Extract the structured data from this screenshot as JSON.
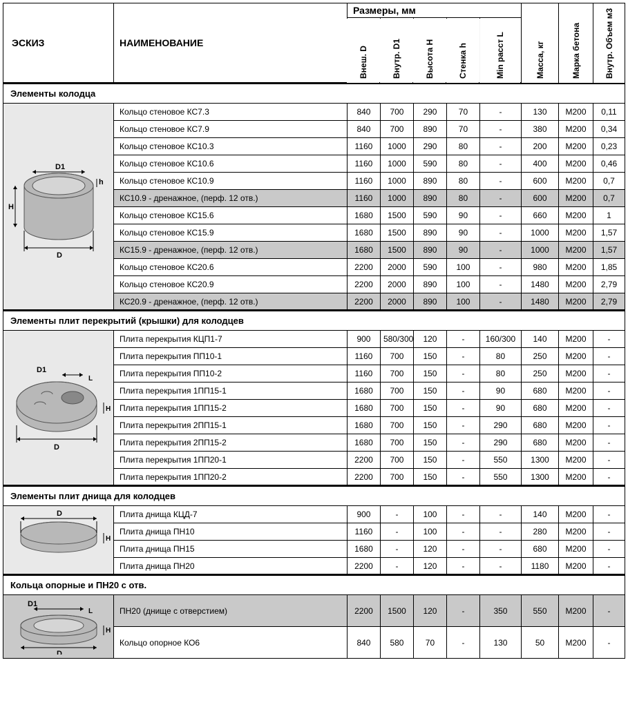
{
  "headers": {
    "sketch": "ЭСКИЗ",
    "name": "НАИМЕНОВАНИЕ",
    "dims_group": "Размеры, мм",
    "outerD": "Внеш. D",
    "innerD1": "Внутр. D1",
    "heightH": "Высота H",
    "wallh": "Стенка h",
    "minL": "Min расст L",
    "mass": "Масса, кг",
    "grade": "Марка бетона",
    "volume": "Внутр. Объем м3"
  },
  "sections": [
    {
      "title": "Элементы колодца",
      "sketch": "ring",
      "rows": [
        {
          "hl": false,
          "name": "Кольцо стеновое КС7.3",
          "D": "840",
          "D1": "700",
          "H": "290",
          "h": "70",
          "L": "-",
          "mass": "130",
          "grade": "M200",
          "vol": "0,11"
        },
        {
          "hl": false,
          "name": "Кольцо стеновое КС7.9",
          "D": "840",
          "D1": "700",
          "H": "890",
          "h": "70",
          "L": "-",
          "mass": "380",
          "grade": "M200",
          "vol": "0,34"
        },
        {
          "hl": false,
          "name": "Кольцо стеновое КС10.3",
          "D": "1160",
          "D1": "1000",
          "H": "290",
          "h": "80",
          "L": "-",
          "mass": "200",
          "grade": "M200",
          "vol": "0,23"
        },
        {
          "hl": false,
          "name": "Кольцо стеновое КС10.6",
          "D": "1160",
          "D1": "1000",
          "H": "590",
          "h": "80",
          "L": "-",
          "mass": "400",
          "grade": "M200",
          "vol": "0,46"
        },
        {
          "hl": false,
          "name": "Кольцо стеновое КС10.9",
          "D": "1160",
          "D1": "1000",
          "H": "890",
          "h": "80",
          "L": "-",
          "mass": "600",
          "grade": "M200",
          "vol": "0,7"
        },
        {
          "hl": true,
          "name": "КС10.9 - дренажное, (перф. 12 отв.)",
          "D": "1160",
          "D1": "1000",
          "H": "890",
          "h": "80",
          "L": "-",
          "mass": "600",
          "grade": "M200",
          "vol": "0,7"
        },
        {
          "hl": false,
          "name": "Кольцо стеновое КС15.6",
          "D": "1680",
          "D1": "1500",
          "H": "590",
          "h": "90",
          "L": "-",
          "mass": "660",
          "grade": "M200",
          "vol": "1"
        },
        {
          "hl": false,
          "name": "Кольцо стеновое КС15.9",
          "D": "1680",
          "D1": "1500",
          "H": "890",
          "h": "90",
          "L": "-",
          "mass": "1000",
          "grade": "M200",
          "vol": "1,57"
        },
        {
          "hl": true,
          "name": "КС15.9 - дренажное, (перф. 12 отв.)",
          "D": "1680",
          "D1": "1500",
          "H": "890",
          "h": "90",
          "L": "-",
          "mass": "1000",
          "grade": "M200",
          "vol": "1,57"
        },
        {
          "hl": false,
          "name": "Кольцо стеновое КС20.6",
          "D": "2200",
          "D1": "2000",
          "H": "590",
          "h": "100",
          "L": "-",
          "mass": "980",
          "grade": "M200",
          "vol": "1,85"
        },
        {
          "hl": false,
          "name": "Кольцо стеновое КС20.9",
          "D": "2200",
          "D1": "2000",
          "H": "890",
          "h": "100",
          "L": "-",
          "mass": "1480",
          "grade": "M200",
          "vol": "2,79"
        },
        {
          "hl": true,
          "name": "КС20.9 - дренажное, (перф. 12 отв.)",
          "D": "2200",
          "D1": "2000",
          "H": "890",
          "h": "100",
          "L": "-",
          "mass": "1480",
          "grade": "M200",
          "vol": "2,79"
        }
      ]
    },
    {
      "title": "Элементы плит перекрытий (крышки) для колодцев",
      "sketch": "cover",
      "rows": [
        {
          "hl": false,
          "name": "Плита перекрытия КЦП1-7",
          "D": "900",
          "D1": "580/300",
          "H": "120",
          "h": "-",
          "L": "160/300",
          "mass": "140",
          "grade": "M200",
          "vol": "-"
        },
        {
          "hl": false,
          "name": "Плита перекрытия ПП10-1",
          "D": "1160",
          "D1": "700",
          "H": "150",
          "h": "-",
          "L": "80",
          "mass": "250",
          "grade": "M200",
          "vol": "-"
        },
        {
          "hl": false,
          "name": "Плита перекрытия ПП10-2",
          "D": "1160",
          "D1": "700",
          "H": "150",
          "h": "-",
          "L": "80",
          "mass": "250",
          "grade": "M200",
          "vol": "-"
        },
        {
          "hl": false,
          "name": "Плита перекрытия 1ПП15-1",
          "D": "1680",
          "D1": "700",
          "H": "150",
          "h": "-",
          "L": "90",
          "mass": "680",
          "grade": "M200",
          "vol": "-"
        },
        {
          "hl": false,
          "name": "Плита перекрытия 1ПП15-2",
          "D": "1680",
          "D1": "700",
          "H": "150",
          "h": "-",
          "L": "90",
          "mass": "680",
          "grade": "M200",
          "vol": "-"
        },
        {
          "hl": false,
          "name": "Плита перекрытия 2ПП15-1",
          "D": "1680",
          "D1": "700",
          "H": "150",
          "h": "-",
          "L": "290",
          "mass": "680",
          "grade": "M200",
          "vol": "-"
        },
        {
          "hl": false,
          "name": "Плита перекрытия 2ПП15-2",
          "D": "1680",
          "D1": "700",
          "H": "150",
          "h": "-",
          "L": "290",
          "mass": "680",
          "grade": "M200",
          "vol": "-"
        },
        {
          "hl": false,
          "name": "Плита перекрытия 1ПП20-1",
          "D": "2200",
          "D1": "700",
          "H": "150",
          "h": "-",
          "L": "550",
          "mass": "1300",
          "grade": "M200",
          "vol": "-"
        },
        {
          "hl": false,
          "name": "Плита перекрытия 1ПП20-2",
          "D": "2200",
          "D1": "700",
          "H": "150",
          "h": "-",
          "L": "550",
          "mass": "1300",
          "grade": "M200",
          "vol": "-"
        }
      ]
    },
    {
      "title": "Элементы плит днища для колодцев",
      "sketch": "bottom",
      "rows": [
        {
          "hl": false,
          "name": "Плита днища КЦД-7",
          "D": "900",
          "D1": "-",
          "H": "100",
          "h": "-",
          "L": "-",
          "mass": "140",
          "grade": "M200",
          "vol": "-"
        },
        {
          "hl": false,
          "name": "Плита днища ПН10",
          "D": "1160",
          "D1": "-",
          "H": "100",
          "h": "-",
          "L": "-",
          "mass": "280",
          "grade": "M200",
          "vol": "-"
        },
        {
          "hl": false,
          "name": "Плита днища ПН15",
          "D": "1680",
          "D1": "-",
          "H": "120",
          "h": "-",
          "L": "-",
          "mass": "680",
          "grade": "M200",
          "vol": "-"
        },
        {
          "hl": false,
          "name": "Плита днища ПН20",
          "D": "2200",
          "D1": "-",
          "H": "120",
          "h": "-",
          "L": "-",
          "mass": "1180",
          "grade": "M200",
          "vol": "-"
        }
      ]
    },
    {
      "title": "Кольца опорные и ПН20 с отв.",
      "sketch": "support",
      "rows": [
        {
          "hl": true,
          "tall": true,
          "name": "ПН20 (днище с отверстием)",
          "D": "2200",
          "D1": "1500",
          "H": "120",
          "h": "-",
          "L": "350",
          "mass": "550",
          "grade": "M200",
          "vol": "-"
        },
        {
          "hl": false,
          "tall": true,
          "name": "Кольцо опорное КО6",
          "D": "840",
          "D1": "580",
          "H": "70",
          "h": "-",
          "L": "130",
          "mass": "50",
          "grade": "M200",
          "vol": "-"
        }
      ]
    }
  ],
  "colors": {
    "highlight_bg": "#c9c9c9",
    "sketch_bg": "#e9e9e9",
    "ring_fill": "#b8b8b8"
  }
}
